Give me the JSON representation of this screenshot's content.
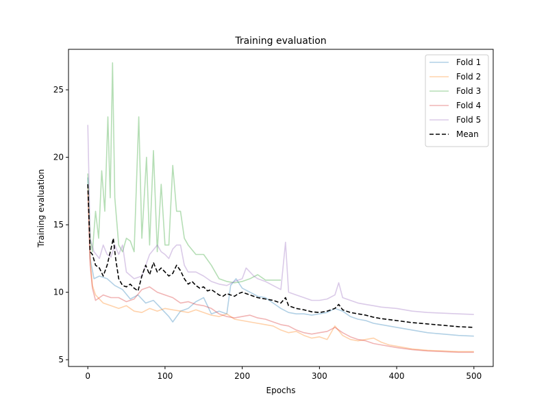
{
  "chart_data": {
    "type": "line",
    "title": "Training evaluation",
    "xlabel": "Epochs",
    "ylabel": "Training evaluation",
    "xlim": [
      -25,
      525
    ],
    "ylim": [
      4.5,
      28
    ],
    "xticks": [
      0,
      100,
      200,
      300,
      400,
      500
    ],
    "yticks": [
      5,
      10,
      15,
      20,
      25
    ],
    "grid": false,
    "legend_position": "top-right",
    "series": [
      {
        "name": "Fold 1",
        "color": "#1f77b4",
        "opacity": 0.35,
        "style": "solid",
        "points": [
          [
            0,
            18.5
          ],
          [
            3,
            12.5
          ],
          [
            8,
            11
          ],
          [
            15,
            11.2
          ],
          [
            25,
            11
          ],
          [
            35,
            10.5
          ],
          [
            45,
            10.2
          ],
          [
            55,
            9.5
          ],
          [
            65,
            9.8
          ],
          [
            75,
            9.2
          ],
          [
            85,
            9.4
          ],
          [
            95,
            8.8
          ],
          [
            105,
            8.2
          ],
          [
            110,
            7.8
          ],
          [
            120,
            8.6
          ],
          [
            130,
            8.8
          ],
          [
            140,
            9.3
          ],
          [
            150,
            9.6
          ],
          [
            160,
            8.4
          ],
          [
            170,
            8.6
          ],
          [
            180,
            8.4
          ],
          [
            185,
            10.5
          ],
          [
            192,
            11
          ],
          [
            200,
            10.3
          ],
          [
            210,
            10
          ],
          [
            220,
            9.7
          ],
          [
            230,
            9.6
          ],
          [
            240,
            9.2
          ],
          [
            250,
            8.8
          ],
          [
            260,
            8.5
          ],
          [
            270,
            8.4
          ],
          [
            280,
            8.4
          ],
          [
            290,
            8.3
          ],
          [
            300,
            8.4
          ],
          [
            310,
            8.5
          ],
          [
            320,
            8.8
          ],
          [
            330,
            8.6
          ],
          [
            340,
            8.2
          ],
          [
            350,
            8
          ],
          [
            360,
            7.9
          ],
          [
            370,
            7.7
          ],
          [
            380,
            7.6
          ],
          [
            400,
            7.4
          ],
          [
            420,
            7.2
          ],
          [
            440,
            7
          ],
          [
            460,
            6.9
          ],
          [
            480,
            6.8
          ],
          [
            500,
            6.75
          ]
        ]
      },
      {
        "name": "Fold 2",
        "color": "#ff7f0e",
        "opacity": 0.35,
        "style": "solid",
        "points": [
          [
            0,
            18
          ],
          [
            3,
            12.5
          ],
          [
            6,
            10.5
          ],
          [
            10,
            9.8
          ],
          [
            20,
            9.2
          ],
          [
            30,
            9
          ],
          [
            40,
            8.8
          ],
          [
            50,
            9
          ],
          [
            60,
            8.6
          ],
          [
            70,
            8.5
          ],
          [
            80,
            8.8
          ],
          [
            90,
            8.6
          ],
          [
            100,
            8.8
          ],
          [
            110,
            8.7
          ],
          [
            120,
            8.6
          ],
          [
            130,
            8.5
          ],
          [
            140,
            8.7
          ],
          [
            150,
            8.5
          ],
          [
            160,
            8.3
          ],
          [
            170,
            8.2
          ],
          [
            180,
            8.4
          ],
          [
            190,
            8
          ],
          [
            200,
            7.9
          ],
          [
            210,
            7.8
          ],
          [
            220,
            7.7
          ],
          [
            230,
            7.6
          ],
          [
            240,
            7.5
          ],
          [
            250,
            7.2
          ],
          [
            260,
            7
          ],
          [
            270,
            7.1
          ],
          [
            280,
            6.8
          ],
          [
            290,
            6.6
          ],
          [
            300,
            6.7
          ],
          [
            310,
            6.5
          ],
          [
            320,
            7.5
          ],
          [
            330,
            6.8
          ],
          [
            340,
            6.5
          ],
          [
            350,
            6.4
          ],
          [
            360,
            6.5
          ],
          [
            370,
            6.6
          ],
          [
            380,
            6.3
          ],
          [
            390,
            6.1
          ],
          [
            400,
            6
          ],
          [
            420,
            5.8
          ],
          [
            440,
            5.7
          ],
          [
            460,
            5.65
          ],
          [
            480,
            5.6
          ],
          [
            500,
            5.6
          ]
        ]
      },
      {
        "name": "Fold 3",
        "color": "#2ca02c",
        "opacity": 0.35,
        "style": "solid",
        "points": [
          [
            0,
            18.8
          ],
          [
            3,
            14
          ],
          [
            6,
            13
          ],
          [
            10,
            16
          ],
          [
            14,
            14
          ],
          [
            18,
            19
          ],
          [
            22,
            16
          ],
          [
            26,
            23
          ],
          [
            29,
            17
          ],
          [
            32,
            27
          ],
          [
            35,
            17
          ],
          [
            40,
            13.5
          ],
          [
            45,
            13
          ],
          [
            50,
            14
          ],
          [
            55,
            13.8
          ],
          [
            60,
            13
          ],
          [
            66,
            23
          ],
          [
            70,
            14
          ],
          [
            76,
            20
          ],
          [
            80,
            13.5
          ],
          [
            85,
            20.5
          ],
          [
            90,
            13
          ],
          [
            95,
            18
          ],
          [
            100,
            13.5
          ],
          [
            105,
            13.5
          ],
          [
            110,
            19.4
          ],
          [
            115,
            16
          ],
          [
            120,
            16
          ],
          [
            125,
            14
          ],
          [
            130,
            13.5
          ],
          [
            140,
            12.8
          ],
          [
            150,
            12.8
          ],
          [
            160,
            12
          ],
          [
            170,
            11
          ],
          [
            180,
            10.8
          ],
          [
            190,
            10.7
          ],
          [
            200,
            10.8
          ],
          [
            210,
            11
          ],
          [
            220,
            11.3
          ],
          [
            230,
            10.9
          ],
          [
            240,
            10.9
          ],
          [
            250,
            10.9
          ]
        ]
      },
      {
        "name": "Fold 4",
        "color": "#d62728",
        "opacity": 0.35,
        "style": "solid",
        "points": [
          [
            0,
            17.5
          ],
          [
            3,
            12
          ],
          [
            6,
            10.3
          ],
          [
            10,
            9.4
          ],
          [
            20,
            9.8
          ],
          [
            30,
            9.6
          ],
          [
            40,
            9.6
          ],
          [
            50,
            9.3
          ],
          [
            60,
            9.5
          ],
          [
            70,
            10.2
          ],
          [
            80,
            10.4
          ],
          [
            90,
            10
          ],
          [
            100,
            9.8
          ],
          [
            110,
            9.6
          ],
          [
            120,
            9.2
          ],
          [
            130,
            9.3
          ],
          [
            140,
            9.1
          ],
          [
            150,
            9
          ],
          [
            160,
            8.8
          ],
          [
            170,
            8.4
          ],
          [
            180,
            8.2
          ],
          [
            190,
            8.1
          ],
          [
            200,
            8.2
          ],
          [
            210,
            8.3
          ],
          [
            220,
            8.1
          ],
          [
            230,
            8
          ],
          [
            240,
            7.8
          ],
          [
            250,
            7.6
          ],
          [
            260,
            7.5
          ],
          [
            270,
            7.2
          ],
          [
            280,
            7
          ],
          [
            290,
            6.9
          ],
          [
            300,
            7
          ],
          [
            310,
            7.1
          ],
          [
            320,
            7.4
          ],
          [
            330,
            7
          ],
          [
            340,
            6.7
          ],
          [
            350,
            6.5
          ],
          [
            360,
            6.4
          ],
          [
            370,
            6.2
          ],
          [
            380,
            6.1
          ],
          [
            400,
            5.9
          ],
          [
            420,
            5.75
          ],
          [
            440,
            5.65
          ],
          [
            460,
            5.6
          ],
          [
            480,
            5.55
          ],
          [
            500,
            5.55
          ]
        ]
      },
      {
        "name": "Fold 5",
        "color": "#9467bd",
        "opacity": 0.35,
        "style": "solid",
        "points": [
          [
            0,
            22.4
          ],
          [
            3,
            14
          ],
          [
            8,
            13
          ],
          [
            15,
            12.5
          ],
          [
            20,
            13.5
          ],
          [
            25,
            12.8
          ],
          [
            30,
            12.6
          ],
          [
            35,
            13.5
          ],
          [
            40,
            12.8
          ],
          [
            45,
            13.5
          ],
          [
            50,
            11.5
          ],
          [
            60,
            11
          ],
          [
            70,
            11.2
          ],
          [
            80,
            12.8
          ],
          [
            90,
            13.5
          ],
          [
            95,
            13
          ],
          [
            100,
            12.8
          ],
          [
            105,
            12.5
          ],
          [
            110,
            13.2
          ],
          [
            115,
            13.5
          ],
          [
            120,
            13.5
          ],
          [
            125,
            12
          ],
          [
            130,
            11.5
          ],
          [
            140,
            11.5
          ],
          [
            150,
            11.2
          ],
          [
            160,
            10.8
          ],
          [
            170,
            10.6
          ],
          [
            180,
            10.5
          ],
          [
            190,
            10.8
          ],
          [
            200,
            11
          ],
          [
            205,
            11.8
          ],
          [
            210,
            11.5
          ],
          [
            215,
            11.2
          ],
          [
            220,
            11
          ],
          [
            230,
            10.8
          ],
          [
            240,
            10.5
          ],
          [
            250,
            10.2
          ],
          [
            256,
            13.7
          ],
          [
            260,
            10
          ],
          [
            270,
            9.8
          ],
          [
            280,
            9.6
          ],
          [
            290,
            9.4
          ],
          [
            300,
            9.4
          ],
          [
            310,
            9.5
          ],
          [
            320,
            9.8
          ],
          [
            325,
            10.7
          ],
          [
            330,
            9.6
          ],
          [
            340,
            9.4
          ],
          [
            350,
            9.2
          ],
          [
            360,
            9.1
          ],
          [
            370,
            9
          ],
          [
            380,
            8.9
          ],
          [
            400,
            8.8
          ],
          [
            420,
            8.6
          ],
          [
            440,
            8.5
          ],
          [
            460,
            8.45
          ],
          [
            480,
            8.4
          ],
          [
            500,
            8.35
          ]
        ]
      },
      {
        "name": "Mean",
        "color": "#000000",
        "opacity": 1,
        "style": "dashed",
        "points": [
          [
            0,
            18
          ],
          [
            3,
            13
          ],
          [
            6,
            12.8
          ],
          [
            10,
            12
          ],
          [
            15,
            11.8
          ],
          [
            20,
            11.2
          ],
          [
            25,
            12
          ],
          [
            30,
            13.2
          ],
          [
            33,
            14
          ],
          [
            36,
            12.5
          ],
          [
            40,
            11
          ],
          [
            45,
            10.5
          ],
          [
            50,
            10.4
          ],
          [
            55,
            10.6
          ],
          [
            60,
            10.3
          ],
          [
            65,
            10.1
          ],
          [
            70,
            11.2
          ],
          [
            75,
            12
          ],
          [
            80,
            11.3
          ],
          [
            85,
            12.2
          ],
          [
            90,
            11.5
          ],
          [
            95,
            11.8
          ],
          [
            100,
            11.5
          ],
          [
            105,
            11.2
          ],
          [
            110,
            11.4
          ],
          [
            115,
            12
          ],
          [
            120,
            11.6
          ],
          [
            125,
            11
          ],
          [
            130,
            10.6
          ],
          [
            135,
            10.8
          ],
          [
            140,
            10.5
          ],
          [
            145,
            10.3
          ],
          [
            150,
            10.4
          ],
          [
            155,
            10.1
          ],
          [
            160,
            10.2
          ],
          [
            165,
            10
          ],
          [
            170,
            9.8
          ],
          [
            175,
            9.7
          ],
          [
            180,
            9.9
          ],
          [
            185,
            9.8
          ],
          [
            190,
            9.7
          ],
          [
            195,
            9.9
          ],
          [
            200,
            10
          ],
          [
            210,
            9.8
          ],
          [
            220,
            9.6
          ],
          [
            230,
            9.5
          ],
          [
            240,
            9.4
          ],
          [
            250,
            9.2
          ],
          [
            256,
            9.6
          ],
          [
            260,
            9
          ],
          [
            270,
            8.8
          ],
          [
            280,
            8.7
          ],
          [
            290,
            8.55
          ],
          [
            300,
            8.5
          ],
          [
            310,
            8.6
          ],
          [
            320,
            8.8
          ],
          [
            325,
            9.1
          ],
          [
            330,
            8.7
          ],
          [
            340,
            8.5
          ],
          [
            350,
            8.4
          ],
          [
            360,
            8.3
          ],
          [
            370,
            8.15
          ],
          [
            380,
            8.05
          ],
          [
            400,
            7.9
          ],
          [
            420,
            7.75
          ],
          [
            440,
            7.65
          ],
          [
            460,
            7.55
          ],
          [
            480,
            7.45
          ],
          [
            500,
            7.4
          ]
        ]
      }
    ]
  }
}
